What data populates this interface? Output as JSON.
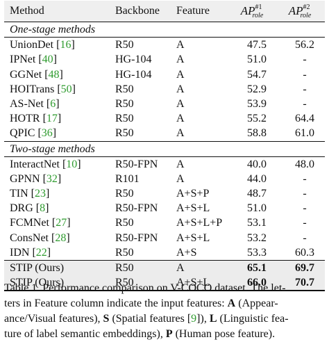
{
  "header": {
    "method": "Method",
    "backbone": "Backbone",
    "feature": "Feature",
    "ap1_main": "AP",
    "ap1_sup": "#1",
    "ap1_sub": "role",
    "ap2_main": "AP",
    "ap2_sup": "#2",
    "ap2_sub": "role"
  },
  "sections": [
    {
      "title": "One-stage methods",
      "rows": [
        {
          "name": "UnionDet",
          "ref": "16",
          "backbone": "R50",
          "feature": "A",
          "ap1": "47.5",
          "ap2": "56.2"
        },
        {
          "name": "IPNet",
          "ref": "40",
          "backbone": "HG-104",
          "feature": "A",
          "ap1": "51.0",
          "ap2": "-"
        },
        {
          "name": "GGNet",
          "ref": "48",
          "backbone": "HG-104",
          "feature": "A",
          "ap1": "54.7",
          "ap2": "-"
        },
        {
          "name": "HOITrans",
          "ref": "50",
          "backbone": "R50",
          "feature": "A",
          "ap1": "52.9",
          "ap2": "-"
        },
        {
          "name": "AS-Net",
          "ref": "6",
          "backbone": "R50",
          "feature": "A",
          "ap1": "53.9",
          "ap2": "-"
        },
        {
          "name": "HOTR",
          "ref": "17",
          "backbone": "R50",
          "feature": "A",
          "ap1": "55.2",
          "ap2": "64.4"
        },
        {
          "name": "QPIC",
          "ref": "36",
          "backbone": "R50",
          "feature": "A",
          "ap1": "58.8",
          "ap2": "61.0"
        }
      ]
    },
    {
      "title": "Two-stage methods",
      "rows": [
        {
          "name": "InteractNet",
          "ref": "10",
          "backbone": "R50-FPN",
          "feature": "A",
          "ap1": "40.0",
          "ap2": "48.0"
        },
        {
          "name": "GPNN",
          "ref": "32",
          "backbone": "R101",
          "feature": "A",
          "ap1": "44.0",
          "ap2": "-"
        },
        {
          "name": "TIN",
          "ref": "23",
          "backbone": "R50",
          "feature": "A+S+P",
          "ap1": "48.7",
          "ap2": "-"
        },
        {
          "name": "DRG",
          "ref": "8",
          "backbone": "R50-FPN",
          "feature": "A+S+L",
          "ap1": "51.0",
          "ap2": "-"
        },
        {
          "name": "FCMNet",
          "ref": "27",
          "backbone": "R50",
          "feature": "A+S+L+P",
          "ap1": "53.1",
          "ap2": "-"
        },
        {
          "name": "ConsNet",
          "ref": "28",
          "backbone": "R50-FPN",
          "feature": "A+S+L",
          "ap1": "53.2",
          "ap2": "-"
        },
        {
          "name": "IDN",
          "ref": "22",
          "backbone": "R50",
          "feature": "A+S",
          "ap1": "53.3",
          "ap2": "60.3"
        }
      ]
    }
  ],
  "ours": [
    {
      "name": "STIP (Ours)",
      "backbone": "R50",
      "feature": "A",
      "ap1": "65.1",
      "ap2": "69.7"
    },
    {
      "name": "STIP (Ours)",
      "backbone": "R50",
      "feature": "A+S+L",
      "ap1": "66.0",
      "ap2": "70.7"
    }
  ],
  "caption": {
    "line1": "Table 1. Performance comparison on V-COCO dataset. The let-",
    "line2_a": "ters in Feature column indicate the input features: ",
    "line2_A": "A",
    "line2_b": " (Appear-",
    "line3_a": "ance/Visual features), ",
    "line3_S": "S",
    "line3_b": " (Spatial features [",
    "line3_ref": "9",
    "line3_c": "]), ",
    "line3_L": "L",
    "line3_d": " (Linguistic fea-",
    "line4_a": "ture of label semantic embeddings), ",
    "line4_P": "P",
    "line4_b": " (Human pose feature)."
  }
}
